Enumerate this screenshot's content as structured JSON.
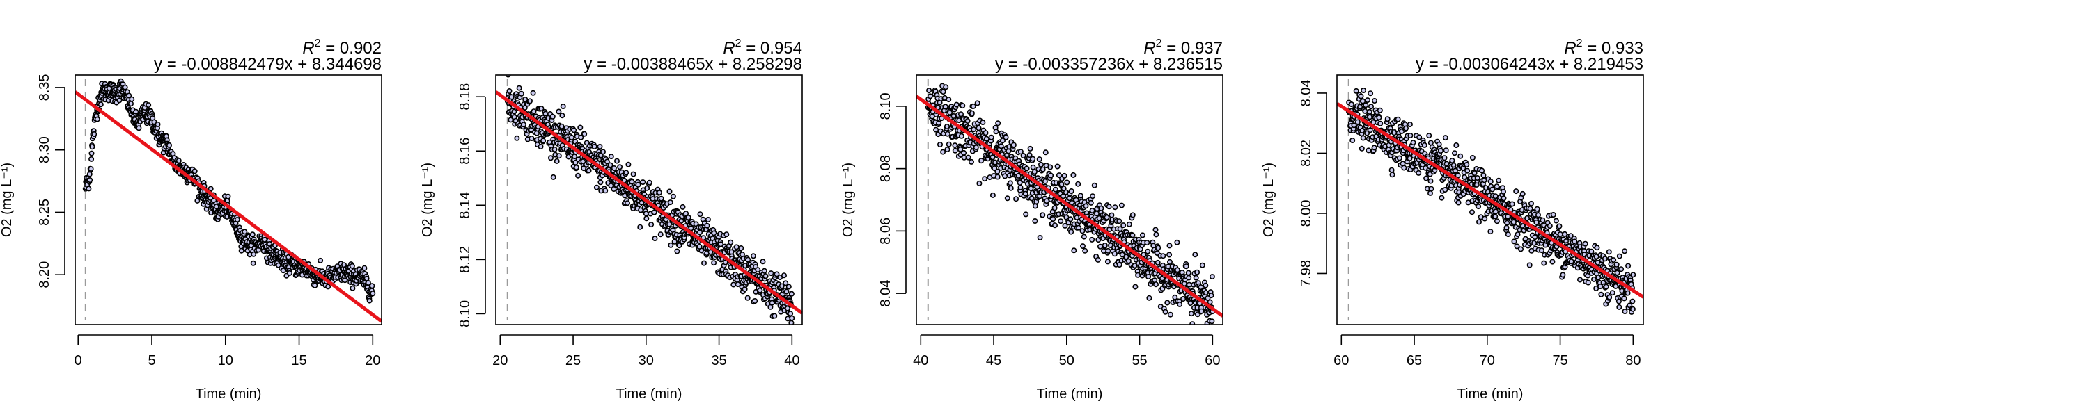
{
  "chart_data": [
    {
      "type": "scatter",
      "stat_label": "R",
      "stat_sup": "2",
      "stat_value": "= 0.902",
      "equation": "y = -0.008842479x + 8.344698",
      "xlabel": "Time (min)",
      "ylabel": "O2 (mg L⁻¹)",
      "xlim": [
        -0.2,
        20.6
      ],
      "ylim": [
        8.16,
        8.36
      ],
      "xticks": [
        0,
        5,
        10,
        15,
        20
      ],
      "yticks": [
        8.2,
        8.25,
        8.3,
        8.35
      ],
      "ytick_labels": [
        "8.20",
        "8.25",
        "8.30",
        "8.35"
      ],
      "vline_x": 0.5,
      "fit": {
        "slope": -0.008842479,
        "intercept": 8.344698
      },
      "x_range": [
        0.5,
        20
      ],
      "profile": [
        [
          0.5,
          8.27
        ],
        [
          0.8,
          8.28
        ],
        [
          1.0,
          8.31
        ],
        [
          1.3,
          8.335
        ],
        [
          1.6,
          8.345
        ],
        [
          2.0,
          8.348
        ],
        [
          2.5,
          8.345
        ],
        [
          3.0,
          8.35
        ],
        [
          3.5,
          8.335
        ],
        [
          4.0,
          8.32
        ],
        [
          4.5,
          8.33
        ],
        [
          5.0,
          8.325
        ],
        [
          5.5,
          8.31
        ],
        [
          6.0,
          8.305
        ],
        [
          6.5,
          8.29
        ],
        [
          7.0,
          8.285
        ],
        [
          7.5,
          8.282
        ],
        [
          8.0,
          8.275
        ],
        [
          8.5,
          8.265
        ],
        [
          9.0,
          8.258
        ],
        [
          9.5,
          8.25
        ],
        [
          10.0,
          8.255
        ],
        [
          10.5,
          8.245
        ],
        [
          11.0,
          8.232
        ],
        [
          11.5,
          8.225
        ],
        [
          12.0,
          8.222
        ],
        [
          12.5,
          8.228
        ],
        [
          13.0,
          8.218
        ],
        [
          13.5,
          8.215
        ],
        [
          14.0,
          8.21
        ],
        [
          14.5,
          8.208
        ],
        [
          15.0,
          8.207
        ],
        [
          15.5,
          8.205
        ],
        [
          16.0,
          8.2
        ],
        [
          16.5,
          8.198
        ],
        [
          17.0,
          8.197
        ],
        [
          17.5,
          8.2
        ],
        [
          18.0,
          8.202
        ],
        [
          18.5,
          8.2
        ],
        [
          19.0,
          8.199
        ],
        [
          19.5,
          8.195
        ],
        [
          20.0,
          8.185
        ]
      ],
      "noise": 0.004,
      "n_points": 900
    },
    {
      "type": "scatter",
      "stat_label": "R",
      "stat_sup": "2",
      "stat_value": "= 0.954",
      "equation": "y = -0.00388465x + 8.258298",
      "xlabel": "Time (min)",
      "ylabel": "O2 (mg L⁻¹)",
      "xlim": [
        19.7,
        40.7
      ],
      "ylim": [
        8.096,
        8.188
      ],
      "xticks": [
        20,
        25,
        30,
        35,
        40
      ],
      "yticks": [
        8.1,
        8.12,
        8.14,
        8.16,
        8.18
      ],
      "ytick_labels": [
        "8.10",
        "8.12",
        "8.14",
        "8.16",
        "8.18"
      ],
      "vline_x": 20.5,
      "fit": {
        "slope": -0.00388465,
        "intercept": 8.258298
      },
      "x_range": [
        20.5,
        40
      ],
      "profile": [],
      "noise": 0.004,
      "n_points": 900
    },
    {
      "type": "scatter",
      "stat_label": "R",
      "stat_sup": "2",
      "stat_value": "= 0.937",
      "equation": "y = -0.003357236x + 8.236515",
      "xlabel": "Time (min)",
      "ylabel": "O2 (mg L⁻¹)",
      "xlim": [
        39.7,
        60.7
      ],
      "ylim": [
        8.03,
        8.11
      ],
      "xticks": [
        40,
        45,
        50,
        55,
        60
      ],
      "yticks": [
        8.04,
        8.06,
        8.08,
        8.1
      ],
      "ytick_labels": [
        "8.04",
        "8.06",
        "8.08",
        "8.10"
      ],
      "vline_x": 40.5,
      "fit": {
        "slope": -0.003357236,
        "intercept": 8.236515
      },
      "x_range": [
        40.5,
        60
      ],
      "profile": [],
      "noise": 0.0045,
      "n_points": 900
    },
    {
      "type": "scatter",
      "stat_label": "R",
      "stat_sup": "2",
      "stat_value": "= 0.933",
      "equation": "y = -0.003064243x + 8.219453",
      "xlabel": "Time (min)",
      "ylabel": "O2 (mg L⁻¹)",
      "xlim": [
        59.7,
        80.7
      ],
      "ylim": [
        7.963,
        8.046
      ],
      "xticks": [
        60,
        65,
        70,
        75,
        80
      ],
      "yticks": [
        7.98,
        8.0,
        8.02,
        8.04
      ],
      "ytick_labels": [
        "7.98",
        "8.00",
        "8.02",
        "8.04"
      ],
      "vline_x": 60.5,
      "fit": {
        "slope": -0.003064243,
        "intercept": 8.219453
      },
      "x_range": [
        60.5,
        80
      ],
      "profile": [],
      "noise": 0.004,
      "n_points": 900
    }
  ],
  "colors": {
    "fit_line": "#e8141b",
    "point_fill": "#c9c9ee",
    "point_stroke": "#000000",
    "vline": "#9a9a9a",
    "axis": "#000000"
  }
}
